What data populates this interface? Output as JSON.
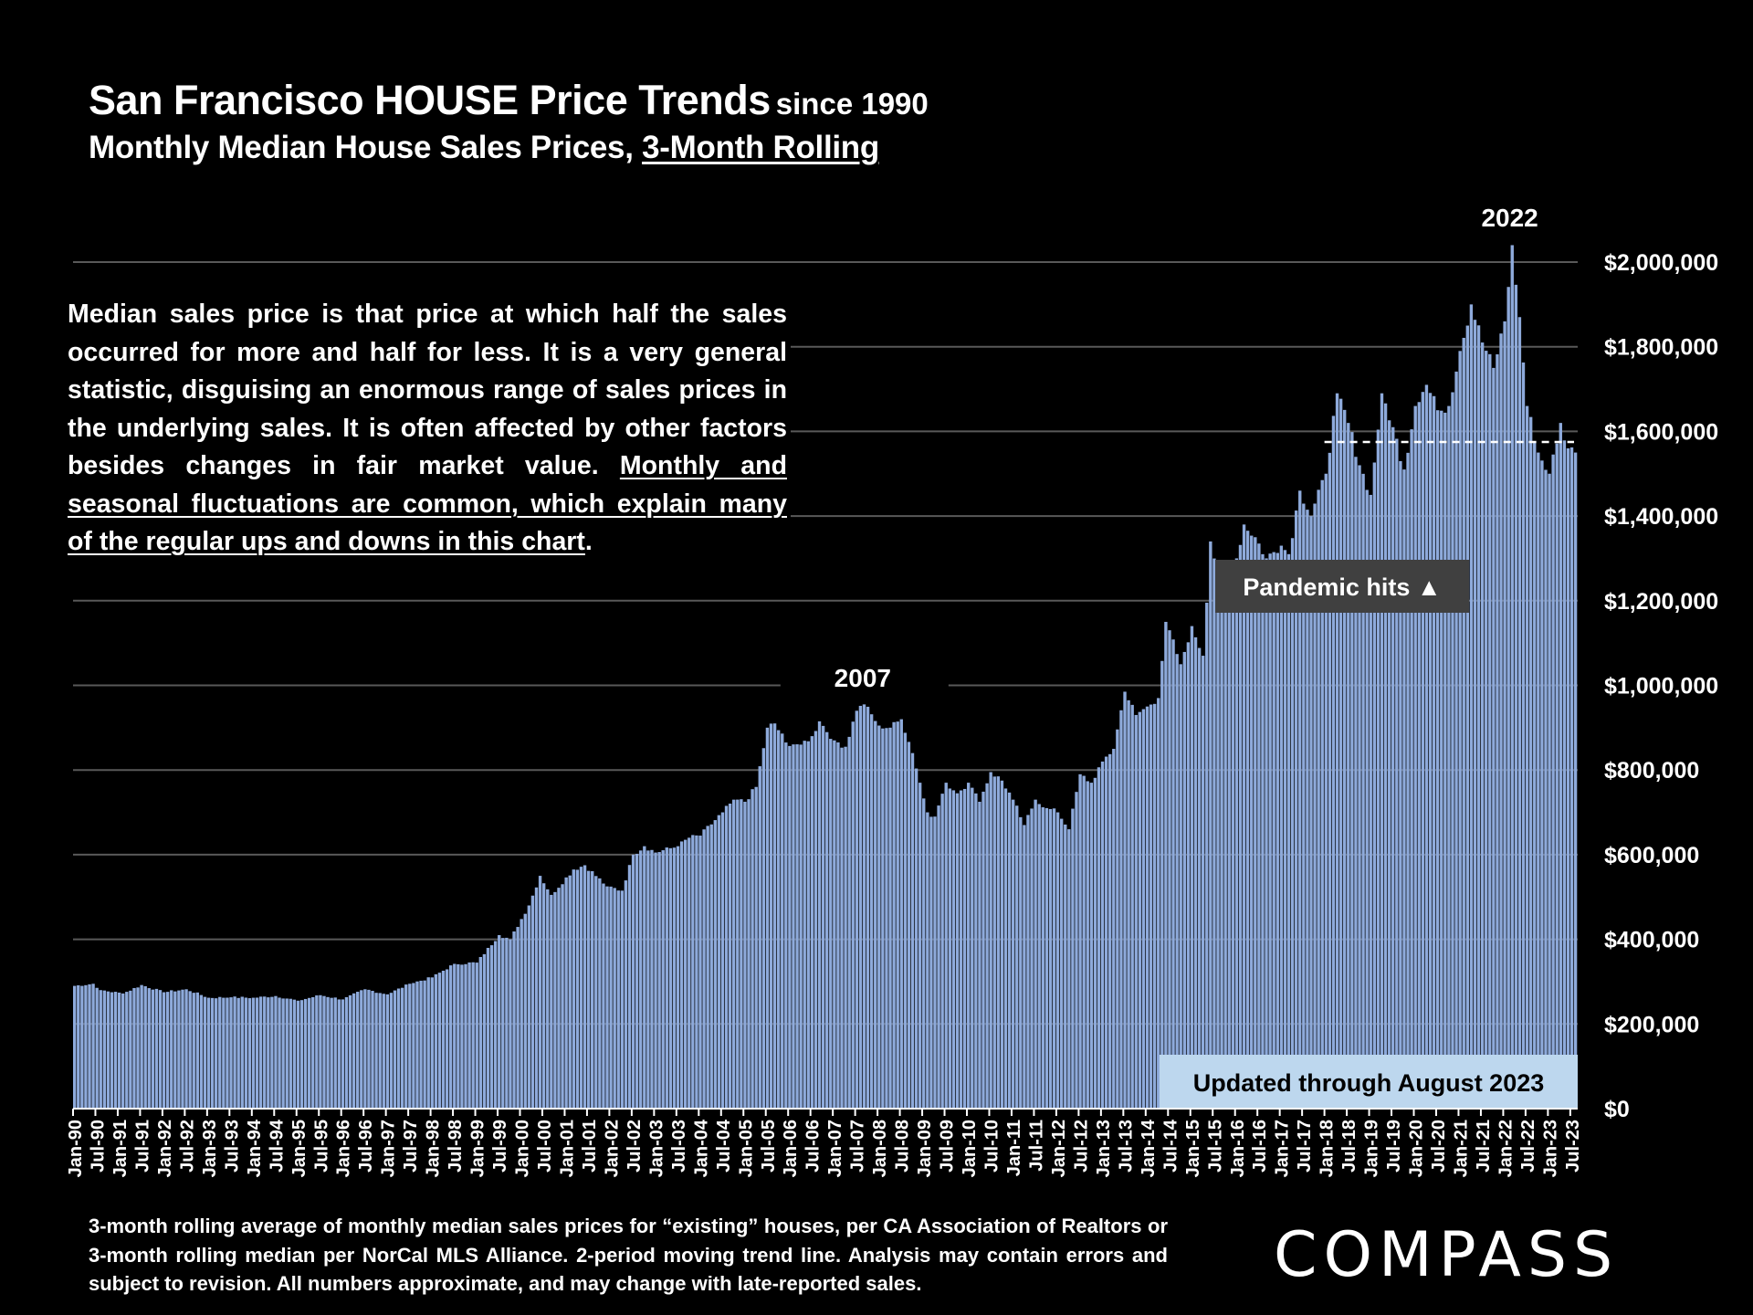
{
  "header": {
    "title": "San Francisco HOUSE Price Trends",
    "title_suffix": "since 1990",
    "subtitle_prefix": "Monthly Median House Sales Prices, ",
    "subtitle_underlined": "3-Month Rolling"
  },
  "explanation": {
    "plain": "Median sales price is that price at which half the sales occurred for more and half for less. It is a very general statistic, disguising an enormous range of sales prices in the underlying sales. It is often affected by other factors besides changes in fair market value. ",
    "underlined": "Monthly and seasonal fluctuations are common, which explain many of the regular ups and downs in this chart",
    "end": "."
  },
  "footnote": "3-month rolling average of monthly median sales prices for “existing” houses, per CA Association of Realtors or 3-month rolling median per NorCal MLS Alliance. 2-period moving trend line. Analysis may contain errors and subject to revision. All numbers approximate, and may change with late-reported sales.",
  "logo": "COMPASS",
  "colors": {
    "bar": "#8eaadb",
    "background": "#000000",
    "callout_bg": "#404040",
    "updated_bg": "#bdd7ee"
  },
  "chart_data": {
    "type": "bar",
    "title": "San Francisco HOUSE Price Trends since 1990",
    "subtitle": "Monthly Median House Sales Prices, 3-Month Rolling",
    "xlabel": "",
    "ylabel": "",
    "ylim": [
      0,
      2000000
    ],
    "y_ticks": [
      "$0",
      "$200,000",
      "$400,000",
      "$600,000",
      "$800,000",
      "$1,000,000",
      "$1,200,000",
      "$1,400,000",
      "$1,600,000",
      "$1,800,000",
      "$2,000,000"
    ],
    "y_axis_position": "right",
    "x_tick_labels": [
      "Jan-90",
      "Jul-90",
      "Jan-91",
      "Jul-91",
      "Jan-92",
      "Jul-92",
      "Jan-93",
      "Jul-93",
      "Jan-94",
      "Jul-94",
      "Jan-95",
      "Jul-95",
      "Jan-96",
      "Jul-96",
      "Jan-97",
      "Jul-97",
      "Jan-98",
      "Jul-98",
      "Jan-99",
      "Jul-99",
      "Jan-00",
      "Jul-00",
      "Jan-01",
      "Jul-01",
      "Jan-02",
      "Jul-02",
      "Jan-03",
      "Jul-03",
      "Jan-04",
      "Jul-04",
      "Jan-05",
      "Jul-05",
      "Jan-06",
      "Jul-06",
      "Jan-07",
      "Jul-07",
      "Jan-08",
      "Jul-08",
      "Jan-09",
      "Jul-09",
      "Jan-10",
      "Jul-10",
      "Jan-11",
      "Jul-11",
      "Jan-12",
      "Jul-12",
      "Jan-13",
      "Jul-13",
      "Jan-14",
      "Jul-14",
      "Jan-15",
      "Jul-15",
      "Jan-16",
      "Jul-16",
      "Jan-17",
      "Jul-17",
      "Jan-18",
      "Jul-18",
      "Jan-19",
      "Jul-19",
      "Jan-20",
      "Jul-20",
      "Jan-21",
      "Jul-21",
      "Jan-22",
      "Jul-22",
      "Jan-23",
      "Jul-23"
    ],
    "start_month": "Jan-90",
    "end_month": "Aug-23",
    "anchor_points": [
      [
        "Jan-90",
        290000
      ],
      [
        "Jun-90",
        295000
      ],
      [
        "Aug-90",
        280000
      ],
      [
        "Feb-91",
        272000
      ],
      [
        "Jul-91",
        292000
      ],
      [
        "Jan-92",
        275000
      ],
      [
        "Jul-92",
        282000
      ],
      [
        "Jan-93",
        262000
      ],
      [
        "Jul-93",
        263000
      ],
      [
        "Jan-94",
        262000
      ],
      [
        "Jul-94",
        266000
      ],
      [
        "Jan-95",
        255000
      ],
      [
        "Jul-95",
        268000
      ],
      [
        "Jan-96",
        258000
      ],
      [
        "Jul-96",
        282000
      ],
      [
        "Jan-97",
        270000
      ],
      [
        "Jul-97",
        295000
      ],
      [
        "Jan-98",
        310000
      ],
      [
        "Jul-98",
        342000
      ],
      [
        "Jan-99",
        345000
      ],
      [
        "Jul-99",
        410000
      ],
      [
        "Oct-99",
        400000
      ],
      [
        "Mar-00",
        480000
      ],
      [
        "Jun-00",
        550000
      ],
      [
        "Sep-00",
        505000
      ],
      [
        "Mar-01",
        565000
      ],
      [
        "Jun-01",
        575000
      ],
      [
        "Dec-01",
        525000
      ],
      [
        "Apr-02",
        515000
      ],
      [
        "Jul-02",
        600000
      ],
      [
        "Oct-02",
        620000
      ],
      [
        "Jan-03",
        605000
      ],
      [
        "Jul-03",
        620000
      ],
      [
        "Oct-03",
        640000
      ],
      [
        "Jan-04",
        645000
      ],
      [
        "Jul-04",
        700000
      ],
      [
        "Oct-04",
        730000
      ],
      [
        "Jan-05",
        725000
      ],
      [
        "Apr-05",
        760000
      ],
      [
        "Jul-05",
        900000
      ],
      [
        "Sep-05",
        910000
      ],
      [
        "Dec-05",
        865000
      ],
      [
        "Apr-06",
        860000
      ],
      [
        "Jul-06",
        880000
      ],
      [
        "Sep-06",
        915000
      ],
      [
        "Jan-07",
        870000
      ],
      [
        "Apr-07",
        855000
      ],
      [
        "Jul-07",
        940000
      ],
      [
        "Sep-07",
        955000
      ],
      [
        "Jan-08",
        905000
      ],
      [
        "Apr-08",
        900000
      ],
      [
        "Jul-08",
        920000
      ],
      [
        "Oct-08",
        840000
      ],
      [
        "Dec-08",
        770000
      ],
      [
        "Feb-09",
        700000
      ],
      [
        "Apr-09",
        690000
      ],
      [
        "Jul-09",
        770000
      ],
      [
        "Oct-09",
        745000
      ],
      [
        "Jan-10",
        770000
      ],
      [
        "Apr-10",
        725000
      ],
      [
        "Jul-10",
        795000
      ],
      [
        "Oct-10",
        775000
      ],
      [
        "Jan-11",
        730000
      ],
      [
        "Apr-11",
        670000
      ],
      [
        "Jul-11",
        730000
      ],
      [
        "Oct-11",
        710000
      ],
      [
        "Jan-12",
        700000
      ],
      [
        "Apr-12",
        660000
      ],
      [
        "Jul-12",
        790000
      ],
      [
        "Oct-12",
        770000
      ],
      [
        "Jan-13",
        820000
      ],
      [
        "Apr-13",
        850000
      ],
      [
        "Jul-13",
        985000
      ],
      [
        "Oct-13",
        930000
      ],
      [
        "Jan-14",
        950000
      ],
      [
        "Apr-14",
        970000
      ],
      [
        "Jun-14",
        1150000
      ],
      [
        "Oct-14",
        1050000
      ],
      [
        "Jan-15",
        1140000
      ],
      [
        "Apr-15",
        1070000
      ],
      [
        "Jun-15",
        1340000
      ],
      [
        "Sep-15",
        1230000
      ],
      [
        "Jan-16",
        1300000
      ],
      [
        "Mar-16",
        1380000
      ],
      [
        "Jun-16",
        1350000
      ],
      [
        "Sep-16",
        1300000
      ],
      [
        "Jan-17",
        1330000
      ],
      [
        "Mar-17",
        1310000
      ],
      [
        "Jun-17",
        1460000
      ],
      [
        "Sep-17",
        1400000
      ],
      [
        "Jan-18",
        1500000
      ],
      [
        "Apr-18",
        1690000
      ],
      [
        "Jul-18",
        1620000
      ],
      [
        "Oct-18",
        1520000
      ],
      [
        "Jan-19",
        1450000
      ],
      [
        "Apr-19",
        1690000
      ],
      [
        "Jul-19",
        1610000
      ],
      [
        "Oct-19",
        1510000
      ],
      [
        "Jan-20",
        1660000
      ],
      [
        "Apr-20",
        1710000
      ],
      [
        "Jul-20",
        1650000
      ],
      [
        "Oct-20",
        1660000
      ],
      [
        "Jan-21",
        1790000
      ],
      [
        "Apr-21",
        1900000
      ],
      [
        "Jul-21",
        1810000
      ],
      [
        "Oct-21",
        1750000
      ],
      [
        "Jan-22",
        1860000
      ],
      [
        "Mar-22",
        2040000
      ],
      [
        "May-22",
        1870000
      ],
      [
        "Jul-22",
        1660000
      ],
      [
        "Oct-22",
        1550000
      ],
      [
        "Jan-23",
        1500000
      ],
      [
        "Apr-23",
        1620000
      ],
      [
        "Jun-23",
        1560000
      ],
      [
        "Aug-23",
        1550000
      ]
    ],
    "trend_reference_value": 1575000,
    "annotations": [
      {
        "text": "2007",
        "month": "Sep-07"
      },
      {
        "text": "2022",
        "month": "Mar-22"
      },
      {
        "text": "Pandemic hits",
        "symbol": "▲"
      },
      {
        "text": "Updated through August 2023"
      }
    ]
  }
}
